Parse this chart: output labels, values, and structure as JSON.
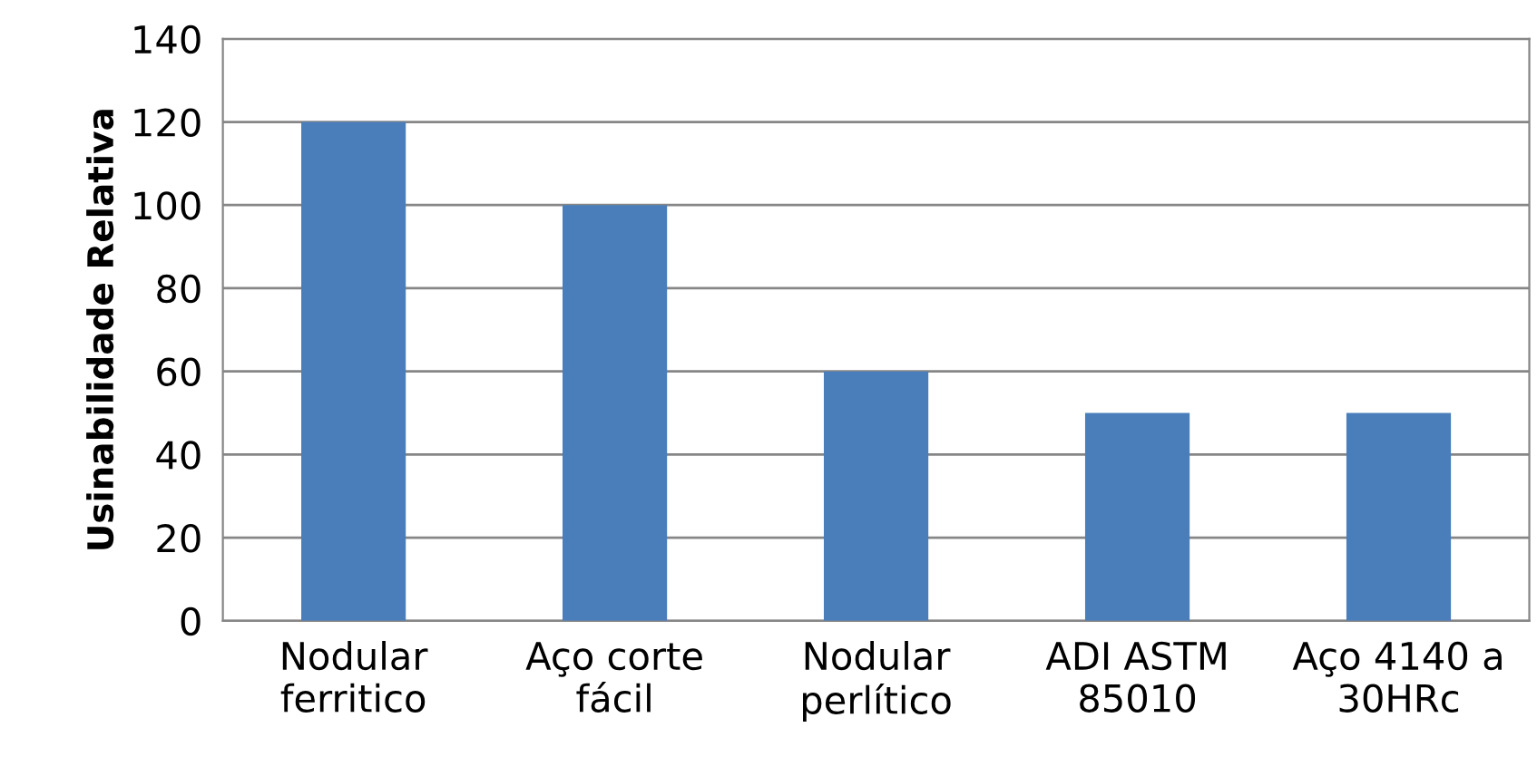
{
  "chart_data": {
    "type": "bar",
    "ylabel": "Usinabilidade Relativa",
    "categories": [
      "Nodular\nferritico",
      "Aço corte\nfácil",
      "Nodular\nperlítico",
      "ADI ASTM\n85010",
      "Aço 4140 a\n30HRc"
    ],
    "values": [
      120,
      100,
      60,
      50,
      50
    ],
    "color": "#4a7ebb",
    "ylim": [
      0,
      140
    ],
    "yticks": [
      0,
      20,
      40,
      60,
      80,
      100,
      120,
      140
    ],
    "grid": "y",
    "legend": false
  }
}
